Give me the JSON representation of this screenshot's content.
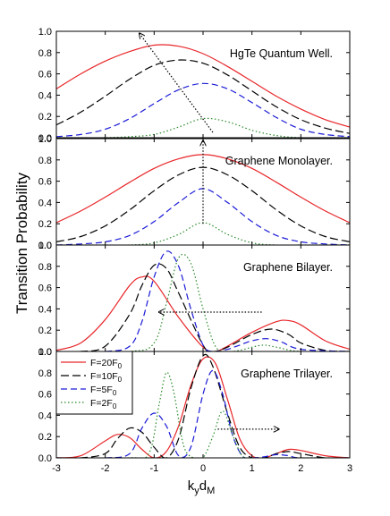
{
  "chart_data": {
    "type": "line",
    "ylabel": "Transition Probability",
    "xlabel": "k",
    "xlabel_sub1": "y",
    "xlabel_mid": "d",
    "xlabel_sub2": "M",
    "xlim": [
      -3,
      3
    ],
    "x_ticks": [
      "-3",
      "-2",
      "-1",
      "0",
      "1",
      "2",
      "3"
    ],
    "y_ticks": [
      "0.0",
      "0.2",
      "0.4",
      "0.6",
      "0.8",
      "1.0"
    ],
    "ylim": [
      0,
      1
    ],
    "legend": {
      "location": "upper-left of bottom panel",
      "entries": [
        {
          "prefix": "F=20F",
          "sub": "0",
          "color": "#e8262a",
          "dash": "solid"
        },
        {
          "prefix": "F=10F",
          "sub": "0",
          "color": "#000000",
          "dash": "long-dash"
        },
        {
          "prefix": "F=5F",
          "sub": "0",
          "color": "#1a1ad6",
          "dash": "dash"
        },
        {
          "prefix": "F=2F",
          "sub": "0",
          "color": "#2a8a2a",
          "dash": "dot"
        }
      ]
    },
    "panels": [
      {
        "title": "HgTe Quantum Well.",
        "arrow": {
          "from": [
            0.2,
            0.05
          ],
          "to": [
            -1.3,
            0.98
          ]
        },
        "series": [
          {
            "color": "#e8262a",
            "dash": "solid",
            "x": [
              -3,
              -2.5,
              -2,
              -1.5,
              -1,
              -0.5,
              0,
              0.5,
              1,
              1.5,
              2,
              2.5,
              3
            ],
            "y": [
              0.46,
              0.6,
              0.72,
              0.81,
              0.87,
              0.86,
              0.79,
              0.67,
              0.53,
              0.39,
              0.27,
              0.17,
              0.1
            ]
          },
          {
            "color": "#000000",
            "dash": "long-dash",
            "x": [
              -3,
              -2.5,
              -2,
              -1.5,
              -1,
              -0.5,
              0,
              0.5,
              1,
              1.5,
              2,
              2.5,
              3
            ],
            "y": [
              0.12,
              0.24,
              0.39,
              0.55,
              0.68,
              0.73,
              0.7,
              0.59,
              0.44,
              0.29,
              0.17,
              0.09,
              0.04
            ]
          },
          {
            "color": "#1a1ad6",
            "dash": "dash",
            "x": [
              -3,
              -2.5,
              -2,
              -1.5,
              -1,
              -0.5,
              0,
              0.5,
              1,
              1.5,
              2,
              2.5,
              3
            ],
            "y": [
              0.01,
              0.03,
              0.08,
              0.18,
              0.32,
              0.45,
              0.51,
              0.46,
              0.33,
              0.19,
              0.08,
              0.03,
              0.01
            ]
          },
          {
            "color": "#2a8a2a",
            "dash": "dot",
            "x": [
              -3,
              -2.5,
              -2,
              -1.5,
              -1,
              -0.5,
              0,
              0.5,
              1,
              1.5,
              2,
              2.5,
              3
            ],
            "y": [
              0.0,
              0.0,
              0.0,
              0.01,
              0.03,
              0.1,
              0.18,
              0.15,
              0.07,
              0.02,
              0.0,
              0.0,
              0.0
            ]
          }
        ]
      },
      {
        "title": "Graphene Monolayer.",
        "arrow": {
          "from": [
            0,
            0.2
          ],
          "to": [
            0,
            0.98
          ]
        },
        "series": [
          {
            "color": "#e8262a",
            "dash": "solid",
            "x": [
              -3,
              -2.5,
              -2,
              -1.5,
              -1,
              -0.5,
              0,
              0.5,
              1,
              1.5,
              2,
              2.5,
              3
            ],
            "y": [
              0.21,
              0.32,
              0.45,
              0.59,
              0.72,
              0.81,
              0.85,
              0.81,
              0.72,
              0.59,
              0.45,
              0.32,
              0.21
            ]
          },
          {
            "color": "#000000",
            "dash": "long-dash",
            "x": [
              -3,
              -2.5,
              -2,
              -1.5,
              -1,
              -0.5,
              0,
              0.5,
              1,
              1.5,
              2,
              2.5,
              3
            ],
            "y": [
              0.03,
              0.08,
              0.18,
              0.33,
              0.51,
              0.66,
              0.73,
              0.66,
              0.51,
              0.33,
              0.18,
              0.08,
              0.03
            ]
          },
          {
            "color": "#1a1ad6",
            "dash": "dash",
            "x": [
              -3,
              -2.5,
              -2,
              -1.5,
              -1,
              -0.5,
              0,
              0.5,
              1,
              1.5,
              2,
              2.5,
              3
            ],
            "y": [
              0.0,
              0.01,
              0.03,
              0.09,
              0.22,
              0.4,
              0.53,
              0.4,
              0.22,
              0.09,
              0.03,
              0.01,
              0.0
            ]
          },
          {
            "color": "#2a8a2a",
            "dash": "dot",
            "x": [
              -3,
              -2.5,
              -2,
              -1.5,
              -1,
              -0.5,
              0,
              0.5,
              1,
              1.5,
              2,
              2.5,
              3
            ],
            "y": [
              0.0,
              0.0,
              0.0,
              0.0,
              0.02,
              0.1,
              0.21,
              0.1,
              0.02,
              0.0,
              0.0,
              0.0,
              0.0
            ]
          }
        ]
      },
      {
        "title": "Graphene Bilayer.",
        "arrow": {
          "from": [
            1.2,
            0.37
          ],
          "to": [
            -0.9,
            0.37
          ]
        },
        "series": [
          {
            "color": "#e8262a",
            "dash": "solid",
            "x": [
              -3,
              -2.5,
              -2,
              -1.5,
              -1.25,
              -1,
              -0.5,
              0,
              0.25,
              0.5,
              1,
              1.5,
              1.75,
              2,
              2.5,
              3
            ],
            "y": [
              0.01,
              0.08,
              0.3,
              0.62,
              0.7,
              0.66,
              0.32,
              0.04,
              0.0,
              0.05,
              0.18,
              0.28,
              0.29,
              0.25,
              0.1,
              0.02
            ]
          },
          {
            "color": "#000000",
            "dash": "long-dash",
            "x": [
              -3,
              -2.5,
              -2,
              -1.5,
              -1.25,
              -1,
              -0.75,
              -0.5,
              0,
              0.2,
              0.5,
              1,
              1.4,
              1.75,
              2,
              2.5,
              3
            ],
            "y": [
              0.0,
              0.0,
              0.05,
              0.35,
              0.62,
              0.81,
              0.78,
              0.55,
              0.06,
              0.0,
              0.04,
              0.16,
              0.21,
              0.16,
              0.08,
              0.01,
              0.0
            ]
          },
          {
            "color": "#1a1ad6",
            "dash": "dash",
            "x": [
              -3,
              -2,
              -1.5,
              -1.25,
              -1,
              -0.75,
              -0.5,
              -0.25,
              0,
              0.2,
              0.5,
              0.75,
              1,
              1.3,
              1.6,
              2,
              3
            ],
            "y": [
              0.0,
              0.0,
              0.05,
              0.28,
              0.7,
              0.94,
              0.8,
              0.4,
              0.06,
              0.0,
              0.02,
              0.06,
              0.1,
              0.12,
              0.09,
              0.02,
              0.0
            ]
          },
          {
            "color": "#2a8a2a",
            "dash": "dot",
            "x": [
              -3,
              -1.5,
              -1,
              -0.75,
              -0.5,
              -0.25,
              0,
              0.25,
              0.5,
              0.75,
              1,
              1.25,
              1.5,
              2,
              3
            ],
            "y": [
              0.0,
              0.0,
              0.08,
              0.45,
              0.88,
              0.83,
              0.4,
              0.05,
              0.0,
              0.01,
              0.04,
              0.06,
              0.04,
              0.0,
              0.0
            ]
          }
        ]
      },
      {
        "title": "Graphene Trilayer.",
        "arrow": {
          "from": [
            0.3,
            0.27
          ],
          "to": [
            1.55,
            0.27
          ]
        },
        "series": [
          {
            "color": "#e8262a",
            "dash": "solid",
            "x": [
              -3,
              -2.5,
              -2,
              -1.75,
              -1.5,
              -1.25,
              -1,
              -0.75,
              -0.5,
              -0.25,
              0,
              0.25,
              0.5,
              0.75,
              1,
              1.25,
              1.5,
              1.75,
              2,
              2.5,
              3
            ],
            "y": [
              0.0,
              0.02,
              0.16,
              0.22,
              0.19,
              0.08,
              0.0,
              0.06,
              0.3,
              0.68,
              0.93,
              0.89,
              0.55,
              0.18,
              0.02,
              0.0,
              0.04,
              0.08,
              0.07,
              0.02,
              0.0
            ]
          },
          {
            "color": "#000000",
            "dash": "long-dash",
            "x": [
              -3,
              -2.5,
              -2,
              -1.75,
              -1.5,
              -1.25,
              -1,
              -0.75,
              -0.5,
              -0.25,
              0,
              0.2,
              0.5,
              0.75,
              1,
              1.25,
              1.5,
              1.75,
              2,
              2.5,
              3
            ],
            "y": [
              0.0,
              0.0,
              0.04,
              0.18,
              0.28,
              0.24,
              0.1,
              0.0,
              0.18,
              0.65,
              0.96,
              0.86,
              0.42,
              0.1,
              0.0,
              0.0,
              0.04,
              0.06,
              0.04,
              0.0,
              0.0
            ]
          },
          {
            "color": "#1a1ad6",
            "dash": "dash",
            "x": [
              -3,
              -2,
              -1.5,
              -1.25,
              -1,
              -0.75,
              -0.5,
              -0.25,
              0,
              0.2,
              0.4,
              0.6,
              0.8,
              1,
              1.25,
              1.5,
              1.75,
              2,
              3
            ],
            "y": [
              0.0,
              0.0,
              0.04,
              0.28,
              0.42,
              0.3,
              0.02,
              0.1,
              0.6,
              0.82,
              0.6,
              0.22,
              0.02,
              0.0,
              0.01,
              0.03,
              0.02,
              0.0,
              0.0
            ]
          },
          {
            "color": "#2a8a2a",
            "dash": "dot",
            "x": [
              -3,
              -1.5,
              -1.1,
              -0.9,
              -0.75,
              -0.6,
              -0.4,
              -0.2,
              0,
              0.2,
              0.4,
              0.6,
              0.8,
              1,
              1.5,
              3
            ],
            "y": [
              0.0,
              0.0,
              0.05,
              0.5,
              0.8,
              0.62,
              0.12,
              0.0,
              0.0,
              0.2,
              0.44,
              0.22,
              0.02,
              0.0,
              0.0,
              0.0
            ]
          }
        ]
      }
    ]
  }
}
